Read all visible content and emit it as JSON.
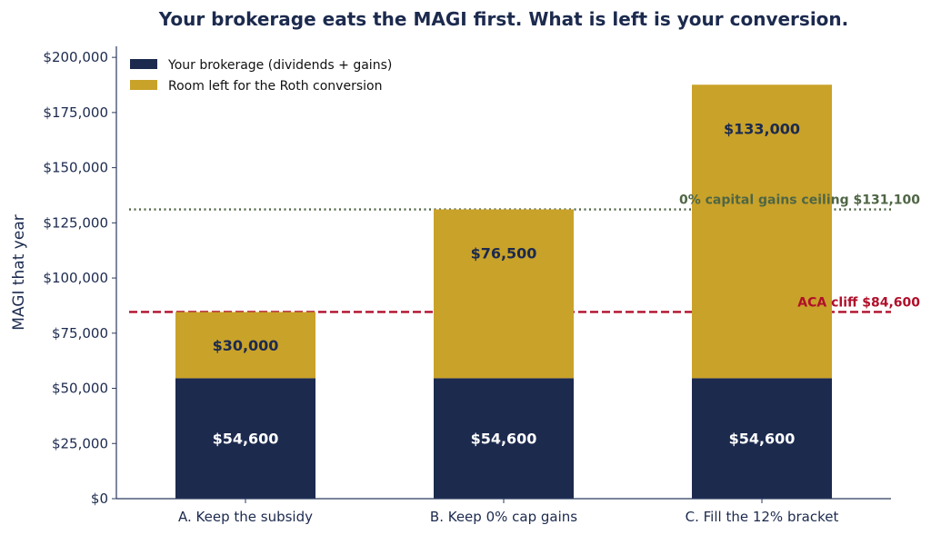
{
  "colors": {
    "navy": "#1c2a4e",
    "gold": "#c9a229",
    "green": "#4f6645",
    "red": "#b00f2a",
    "axis": "#2a3a5e"
  },
  "chart_data": {
    "type": "bar",
    "stacked": true,
    "title": "Your brokerage eats the MAGI first. What is left is your conversion.",
    "xlabel": "",
    "ylabel": "MAGI that year",
    "ylim": [
      0,
      205000
    ],
    "yticks": [
      0,
      25000,
      50000,
      75000,
      100000,
      125000,
      150000,
      175000,
      200000
    ],
    "ytick_labels": [
      "$0",
      "$25,000",
      "$50,000",
      "$75,000",
      "$100,000",
      "$125,000",
      "$150,000",
      "$175,000",
      "$200,000"
    ],
    "categories": [
      "A. Keep the subsidy",
      "B. Keep 0% cap gains",
      "C. Fill the 12% bracket"
    ],
    "series": [
      {
        "name": "Your brokerage (dividends + gains)",
        "color": "#1c2a4e",
        "values": [
          54600,
          54600,
          54600
        ],
        "labels": [
          "$54,600",
          "$54,600",
          "$54,600"
        ]
      },
      {
        "name": "Room left for the Roth conversion",
        "color": "#c9a229",
        "values": [
          30000,
          76500,
          133000
        ],
        "labels": [
          "$30,000",
          "$76,500",
          "$133,000"
        ]
      }
    ],
    "reference_lines": [
      {
        "label": "0% capital gains ceiling  $131,100",
        "value": 131100,
        "style": "dotted",
        "color": "#4f6645"
      },
      {
        "label": "ACA cliff  $84,600",
        "value": 84600,
        "style": "dashed",
        "color": "#b00f2a"
      }
    ],
    "legend_position": "top-left",
    "grid": false
  }
}
